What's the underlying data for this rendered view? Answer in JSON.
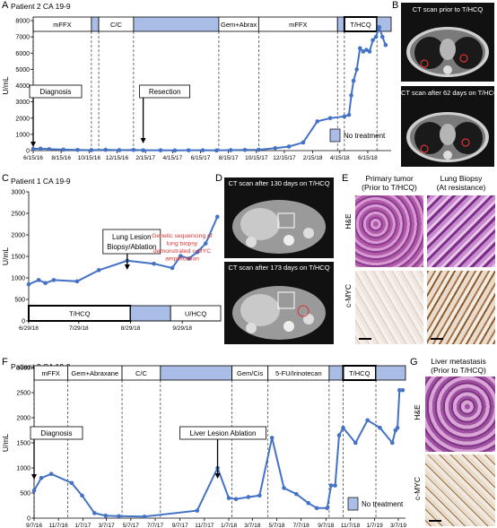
{
  "panel_letters": [
    "A",
    "B",
    "C",
    "D",
    "E",
    "F",
    "G"
  ],
  "no_treatment_label": "No treatment",
  "colors": {
    "line": "#4472c4",
    "bar": "#a9bde6",
    "red_text": "#e03030"
  },
  "panelB": {
    "cap_top": "CT scan prior to T/HCQ",
    "cap_bottom": "CT scan after 62 days on T/HCQ"
  },
  "panelD": {
    "cap_top": "CT scan after 130 days on T/HCQ",
    "cap_bottom": "CT scan after 173 days on T/HCQ"
  },
  "panelE": {
    "col1": "Primary tumor",
    "col1b": "(Prior to T/HCQ)",
    "col2": "Lung Biopsy",
    "col2b": "(At resistance)",
    "row1": "H&E",
    "row2": "c-MYC"
  },
  "panelG": {
    "title": "Liver metastasis",
    "title_b": "(Prior to T/HCQ)",
    "row1": "H&E",
    "row2": "c-MYC"
  },
  "chart_data": [
    {
      "type": "line",
      "title": "Patient 2 CA 19-9",
      "ylabel": "U/mL",
      "ylim": [
        0,
        8000
      ],
      "yticks": [
        0,
        1000,
        2000,
        3000,
        4000,
        5000,
        6000,
        7000,
        8000
      ],
      "xrange": [
        "2016-06-15",
        "2018-08-05"
      ],
      "xticks": [
        {
          "d": "2016-06-15",
          "l": "6/15/16"
        },
        {
          "d": "2016-08-15",
          "l": "8/15/16"
        },
        {
          "d": "2016-10-15",
          "l": "10/15/16"
        },
        {
          "d": "2016-12-15",
          "l": "12/15/16"
        },
        {
          "d": "2017-02-15",
          "l": "2/15/17"
        },
        {
          "d": "2017-04-15",
          "l": "4/15/17"
        },
        {
          "d": "2017-06-15",
          "l": "6/15/17"
        },
        {
          "d": "2017-08-15",
          "l": "8/15/17"
        },
        {
          "d": "2017-10-15",
          "l": "10/15/17"
        },
        {
          "d": "2017-12-15",
          "l": "12/15/17"
        },
        {
          "d": "2018-02-15",
          "l": "2/15/18"
        },
        {
          "d": "2018-04-15",
          "l": "4/15/18"
        },
        {
          "d": "2018-06-15",
          "l": "6/15/18"
        }
      ],
      "series": [
        {
          "x": [
            "2016-06-15",
            "2016-07-01",
            "2016-07-20",
            "2016-08-20",
            "2016-09-20",
            "2016-10-20",
            "2016-11-20",
            "2016-12-20",
            "2017-01-20",
            "2017-02-10",
            "2017-03-20",
            "2017-04-20",
            "2017-05-20",
            "2017-06-20",
            "2017-07-20",
            "2017-08-20",
            "2017-09-20",
            "2017-10-20",
            "2017-11-25",
            "2017-12-25",
            "2018-01-25",
            "2018-02-25",
            "2018-03-25",
            "2018-04-25",
            "2018-05-05",
            "2018-05-10",
            "2018-05-15",
            "2018-05-22",
            "2018-05-29",
            "2018-06-05",
            "2018-06-12",
            "2018-06-19",
            "2018-06-26",
            "2018-07-03",
            "2018-07-10",
            "2018-07-17",
            "2018-07-24"
          ],
          "y": [
            100,
            120,
            90,
            60,
            40,
            30,
            50,
            30,
            40,
            20,
            20,
            10,
            20,
            20,
            10,
            30,
            40,
            50,
            150,
            250,
            500,
            1800,
            2000,
            2100,
            2200,
            3400,
            4300,
            5000,
            6300,
            6100,
            6200,
            6100,
            6800,
            7000,
            7600,
            7000,
            6500
          ]
        }
      ],
      "bars": [
        {
          "from": "2016-06-15",
          "to": "2016-10-20",
          "label": "mFFX",
          "kind": "treatment"
        },
        {
          "from": "2016-10-20",
          "to": "2016-11-05",
          "label": "",
          "kind": "none"
        },
        {
          "from": "2016-11-05",
          "to": "2017-01-20",
          "label": "C/C",
          "kind": "treatment"
        },
        {
          "from": "2017-01-20",
          "to": "2017-07-25",
          "label": "",
          "kind": "none"
        },
        {
          "from": "2017-07-25",
          "to": "2017-10-20",
          "label": "Gem+Abrax",
          "kind": "treatment"
        },
        {
          "from": "2017-10-20",
          "to": "2018-04-10",
          "label": "mFFX",
          "kind": "treatment"
        },
        {
          "from": "2018-04-10",
          "to": "2018-04-25",
          "label": "",
          "kind": "none"
        },
        {
          "from": "2018-04-25",
          "to": "2018-07-05",
          "label": "T/HCQ",
          "kind": "current"
        },
        {
          "from": "2018-07-05",
          "to": "2018-08-05",
          "label": "",
          "kind": "none"
        }
      ],
      "dashed": [
        "2016-06-15",
        "2016-10-20",
        "2016-11-05",
        "2017-01-20",
        "2017-07-25",
        "2017-10-20",
        "2018-04-10",
        "2018-04-25",
        "2018-07-05"
      ],
      "annotations": [
        {
          "text": "Diagnosis",
          "x": "2016-06-15"
        },
        {
          "text": "Resection",
          "x": "2017-02-10"
        }
      ]
    },
    {
      "type": "line",
      "title": "Patient 1 CA 19-9",
      "ylabel": "U/mL",
      "ylim": [
        0,
        3000
      ],
      "yticks": [
        0,
        500,
        1000,
        1500,
        2000,
        2500,
        3000
      ],
      "xrange": [
        "2018-06-29",
        "2018-10-22"
      ],
      "xticks": [
        {
          "d": "2018-06-29",
          "l": "6/29/18"
        },
        {
          "d": "2018-07-29",
          "l": "7/29/18"
        },
        {
          "d": "2018-08-29",
          "l": "8/29/18"
        },
        {
          "d": "2018-09-29",
          "l": "9/29/18"
        }
      ],
      "series": [
        {
          "x": [
            "2018-06-29",
            "2018-07-05",
            "2018-07-09",
            "2018-07-14",
            "2018-07-28",
            "2018-08-10",
            "2018-08-27",
            "2018-09-12",
            "2018-09-23",
            "2018-09-28",
            "2018-10-03",
            "2018-10-08",
            "2018-10-13",
            "2018-10-20"
          ],
          "y": [
            850,
            950,
            880,
            950,
            920,
            1180,
            1400,
            1330,
            1230,
            1510,
            1450,
            1600,
            1800,
            2420
          ]
        }
      ],
      "bars": [
        {
          "from": "2018-06-29",
          "to": "2018-08-29",
          "label": "T/HCQ",
          "kind": "current"
        },
        {
          "from": "2018-08-29",
          "to": "2018-09-22",
          "label": "",
          "kind": "none"
        },
        {
          "from": "2018-09-22",
          "to": "2018-10-22",
          "label": "U/HCQ",
          "kind": "treatment"
        }
      ],
      "dashed": [
        "2018-08-29",
        "2018-09-22"
      ],
      "annotations": [
        {
          "text": "Lung Lesion",
          "text2": "Biopsy/Ablation",
          "x": "2018-08-27"
        },
        {
          "text": "Genetic sequencing of",
          "text2": "lung biopsy",
          "text3": "demonstrated c-MYC",
          "text4": "amplification",
          "kind": "red"
        }
      ]
    },
    {
      "type": "line",
      "title": "Patient 3 CA 19-9",
      "ylabel": "U/mL",
      "ylim": [
        0,
        3000
      ],
      "yticks": [
        0,
        500,
        1000,
        1500,
        2000,
        2500,
        3000
      ],
      "xrange": [
        "2016-09-07",
        "2019-03-25"
      ],
      "xticks": [
        {
          "d": "2016-09-07",
          "l": "9/7/16"
        },
        {
          "d": "2016-11-07",
          "l": "11/7/16"
        },
        {
          "d": "2017-01-07",
          "l": "1/7/17"
        },
        {
          "d": "2017-03-07",
          "l": "3/7/17"
        },
        {
          "d": "2017-05-07",
          "l": "5/7/17"
        },
        {
          "d": "2017-07-07",
          "l": "7/7/17"
        },
        {
          "d": "2017-09-07",
          "l": "9/7/17"
        },
        {
          "d": "2017-11-07",
          "l": "11/7/17"
        },
        {
          "d": "2018-01-07",
          "l": "1/7/18"
        },
        {
          "d": "2018-03-07",
          "l": "3/7/18"
        },
        {
          "d": "2018-05-07",
          "l": "5/7/18"
        },
        {
          "d": "2018-07-07",
          "l": "7/7/18"
        },
        {
          "d": "2018-09-07",
          "l": "9/7/18"
        },
        {
          "d": "2018-11-07",
          "l": "11/7/18"
        },
        {
          "d": "2019-01-07",
          "l": "1/7/19"
        },
        {
          "d": "2019-03-07",
          "l": "3/7/19"
        }
      ],
      "series": [
        {
          "x": [
            "2016-09-07",
            "2016-09-25",
            "2016-10-20",
            "2016-12-10",
            "2017-01-05",
            "2017-02-05",
            "2017-03-05",
            "2017-04-07",
            "2017-06-10",
            "2017-10-20",
            "2017-12-10",
            "2018-01-07",
            "2018-01-25",
            "2018-02-25",
            "2018-03-25",
            "2018-04-25",
            "2018-05-25",
            "2018-06-25",
            "2018-07-25",
            "2018-08-15",
            "2018-09-10",
            "2018-09-20",
            "2018-09-30",
            "2018-10-10",
            "2018-10-20",
            "2018-11-20",
            "2018-12-20",
            "2019-01-20",
            "2019-02-20",
            "2019-02-28",
            "2019-03-05",
            "2019-03-10",
            "2019-03-18"
          ],
          "y": [
            550,
            800,
            880,
            700,
            450,
            100,
            50,
            40,
            30,
            150,
            1000,
            400,
            380,
            420,
            450,
            1600,
            600,
            480,
            300,
            200,
            200,
            650,
            650,
            1650,
            1800,
            1500,
            1950,
            1800,
            1500,
            1750,
            1800,
            2550,
            2550
          ]
        }
      ],
      "bars": [
        {
          "from": "2016-09-07",
          "to": "2016-11-30",
          "label": "mFFX",
          "kind": "treatment"
        },
        {
          "from": "2016-11-30",
          "to": "2017-04-15",
          "label": "Gem+Abraxane",
          "kind": "treatment"
        },
        {
          "from": "2017-04-15",
          "to": "2017-07-20",
          "label": "C/C",
          "kind": "treatment"
        },
        {
          "from": "2017-07-20",
          "to": "2018-01-15",
          "label": "",
          "kind": "none"
        },
        {
          "from": "2018-01-15",
          "to": "2018-04-15",
          "label": "Gem/Cis",
          "kind": "treatment"
        },
        {
          "from": "2018-04-15",
          "to": "2018-09-15",
          "label": "5-FU/Irinotecan",
          "kind": "treatment"
        },
        {
          "from": "2018-09-15",
          "to": "2018-10-20",
          "label": "",
          "kind": "none"
        },
        {
          "from": "2018-10-20",
          "to": "2019-01-10",
          "label": "T/HCQ",
          "kind": "current"
        },
        {
          "from": "2019-01-10",
          "to": "2019-03-25",
          "label": "",
          "kind": "none"
        }
      ],
      "dashed": [
        "2016-09-07",
        "2016-11-30",
        "2017-04-15",
        "2017-07-20",
        "2018-01-15",
        "2018-04-15",
        "2018-09-15",
        "2018-10-20",
        "2019-01-10"
      ],
      "annotations": [
        {
          "text": "Diagnosis",
          "x": "2016-09-07"
        },
        {
          "text": "Liver Lesion Ablation",
          "x": "2017-12-10"
        }
      ]
    }
  ]
}
